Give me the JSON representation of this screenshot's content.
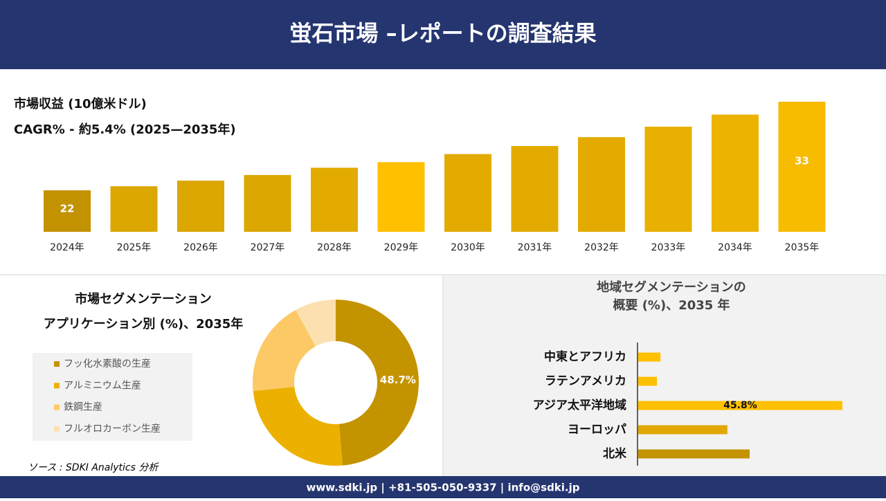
{
  "header": {
    "title": "蛍石市場 –レポートの調査結果"
  },
  "chart_data": [
    {
      "type": "bar",
      "title": "市場収益 (10億米ドル)",
      "subtitle": "CAGR% - 約5.4% (2025—2035年)",
      "categories": [
        "2024年",
        "2025年",
        "2026年",
        "2027年",
        "2028年",
        "2029年",
        "2030年",
        "2031年",
        "2032年",
        "2033年",
        "2034年",
        "2035年"
      ],
      "values": [
        22,
        22.5,
        23.2,
        23.9,
        24.8,
        25.5,
        26.5,
        27.5,
        28.6,
        29.9,
        31.4,
        33
      ],
      "value_labels": [
        "22",
        null,
        null,
        null,
        null,
        null,
        null,
        null,
        null,
        null,
        null,
        "33"
      ],
      "colors": [
        "#c39200",
        "#dba700",
        "#dba700",
        "#dba700",
        "#e3ab00",
        "#ffc000",
        "#e3ab00",
        "#e3ab00",
        "#e3ab00",
        "#e8b000",
        "#ecb300",
        "#f7bb00"
      ]
    },
    {
      "type": "donut",
      "title": [
        "市場セグメンテーション",
        "アプリケーション別 (%)、2035年"
      ],
      "categories": [
        "フッ化水素酸の生産",
        "アルミニウム生産",
        "鉄鋼生産",
        "フルオロカーボン生産"
      ],
      "values": [
        48.7,
        24.7,
        18.6,
        8
      ],
      "value_labels": [
        "48.7%",
        null,
        null,
        null
      ],
      "colors": [
        "#c49300",
        "#ecb100",
        "#fcc966",
        "#fde0b0"
      ]
    },
    {
      "type": "barh",
      "title": [
        "地域セグメンテーションの",
        "概要 (%)、2035 年"
      ],
      "categories": [
        "中東とアフリカ",
        "ラテンアメリカ",
        "アジア太平洋地域",
        "ヨーロッパ",
        "北米"
      ],
      "values": [
        5,
        4.2,
        45.8,
        20,
        25
      ],
      "value_labels": [
        null,
        null,
        "45.8%",
        null,
        null
      ],
      "colors": [
        "#ffc000",
        "#ffc000",
        "#ffc000",
        "#e0a800",
        "#c49300"
      ]
    }
  ],
  "footer": {
    "source": "ソース : SDKI Analytics 分析",
    "contact": "www.sdki.jp | +81-505-050-9337 | info@sdki.jp"
  }
}
